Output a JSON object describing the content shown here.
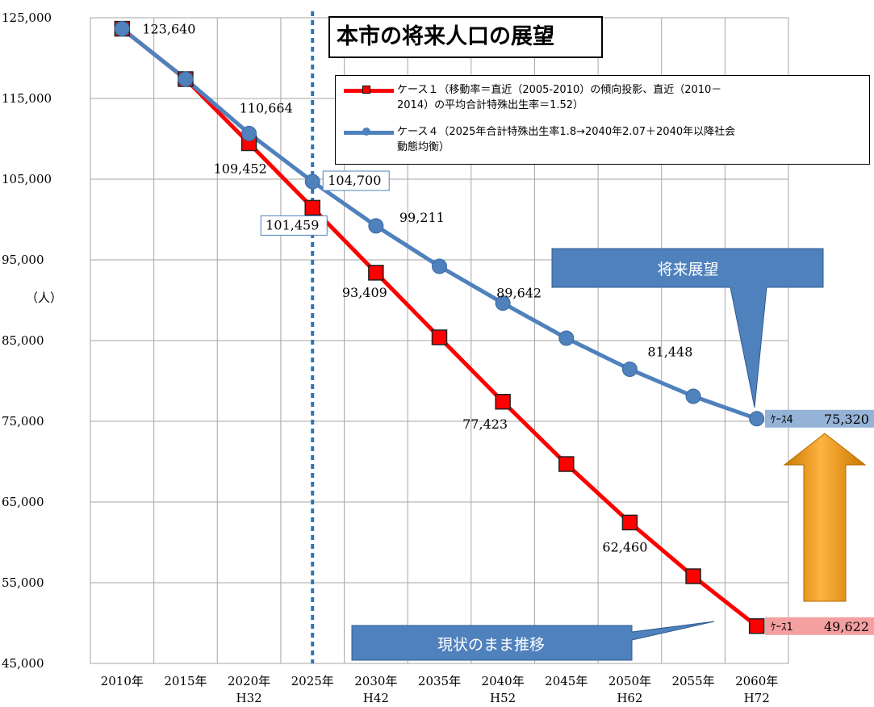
{
  "title": "本市の将来人口の展望",
  "y_unit": "（人）",
  "chart_data": {
    "type": "line",
    "categories": [
      "2010年",
      "2015年",
      "2020年",
      "2025年",
      "2030年",
      "2035年",
      "2040年",
      "2045年",
      "2050年",
      "2055年",
      "2060年"
    ],
    "era_labels": [
      "",
      "",
      "H32",
      "",
      "H42",
      "",
      "H52",
      "",
      "H62",
      "",
      "H72"
    ],
    "ylim": [
      45000,
      125000
    ],
    "yticks": [
      45000,
      55000,
      65000,
      75000,
      85000,
      95000,
      105000,
      115000,
      125000
    ],
    "ytick_labels": [
      "45,000",
      "55,000",
      "65,000",
      "75,000",
      "85,000",
      "95,000",
      "105,000",
      "115,000",
      "125,000"
    ],
    "series": [
      {
        "name": "ケース１（移動率＝直近（2005-2010）の傾向投影、直近（2010－2014）の平均合計特殊出生率＝1.52）",
        "color": "#ff0000",
        "marker": "square",
        "values": [
          123640,
          117400,
          109452,
          101459,
          93409,
          85400,
          77423,
          69700,
          62460,
          55800,
          49622
        ],
        "data_labels": [
          {
            "index": 2,
            "text": "109,452"
          },
          {
            "index": 3,
            "text": "101,459",
            "boxed": true
          },
          {
            "index": 4,
            "text": "93,409"
          },
          {
            "index": 6,
            "text": "77,423"
          },
          {
            "index": 8,
            "text": "62,460"
          }
        ],
        "end_tag": {
          "prefix": "ｹｰｽ1",
          "value": "49,622",
          "color": "#f4a0a0"
        }
      },
      {
        "name": "ケース４（2025年合計特殊出生率1.8→2040年2.07＋2040年以降社会動態均衡）",
        "color": "#4f81bd",
        "marker": "circle",
        "values": [
          123640,
          117400,
          110664,
          104700,
          99211,
          94200,
          89642,
          85300,
          81448,
          78100,
          75320
        ],
        "data_labels": [
          {
            "index": 0,
            "text": "123,640"
          },
          {
            "index": 2,
            "text": "110,664"
          },
          {
            "index": 3,
            "text": "104,700",
            "boxed": true
          },
          {
            "index": 4,
            "text": "99,211"
          },
          {
            "index": 6,
            "text": "89,642"
          },
          {
            "index": 8,
            "text": "81,448"
          }
        ],
        "end_tag": {
          "prefix": "ｹｰｽ4",
          "value": "75,320",
          "color": "#95b3d7"
        }
      }
    ],
    "reference_line_category": "2025年",
    "grid": true
  },
  "legend": {
    "case1_line1": "ケース１（移動率＝直近（2005-2010）の傾向投影、直近（2010－",
    "case1_line2": "2014）の平均合計特殊出生率＝1.52）",
    "case4_line1": "ケース４（2025年合計特殊出生率1.8→2040年2.07＋2040年以降社会",
    "case4_line2": "動態均衡）"
  },
  "callouts": {
    "future": "将来展望",
    "current": "現状のまま推移"
  },
  "colors": {
    "case1": "#ff0000",
    "case4": "#4f81bd",
    "callout": "#4f81bd",
    "arrow": "#f8a01c",
    "grid": "#a6a6a6",
    "reference": "#2e75b6"
  }
}
